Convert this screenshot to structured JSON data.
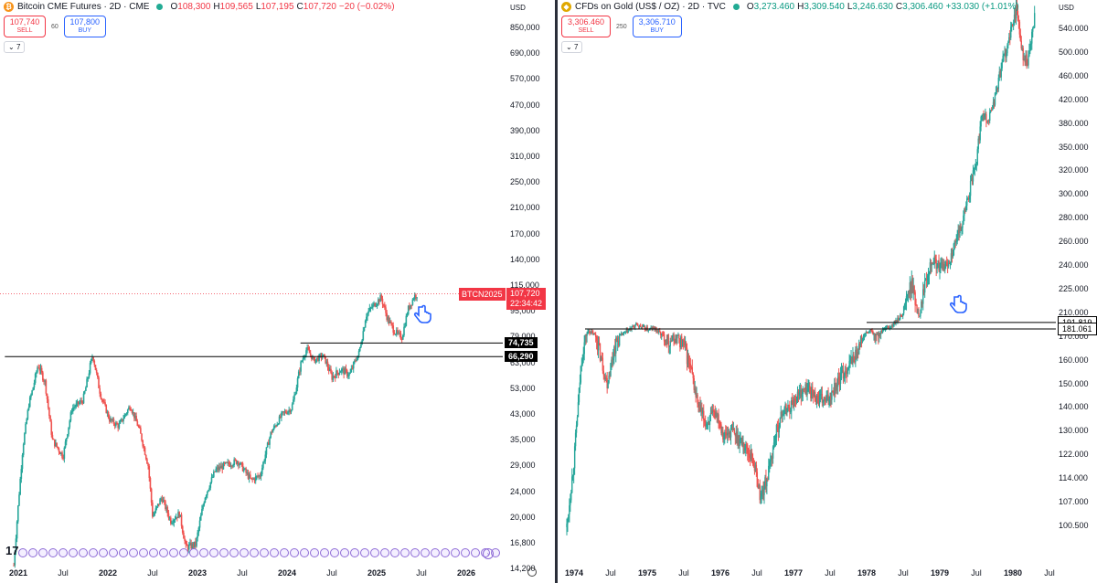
{
  "left": {
    "title": "Bitcoin CME Futures · 2D · CME",
    "ohlc": {
      "o_label": "O",
      "o": "108,300",
      "h_label": "H",
      "h": "109,565",
      "l_label": "L",
      "l": "107,195",
      "c_label": "C",
      "c": "107,720",
      "chg": "−20 (−0.02%)"
    },
    "sell_price": "107,740",
    "sell_label": "SELL",
    "spread": "60",
    "buy_price": "107,800",
    "buy_label": "BUY",
    "collapse_label": "7",
    "currency": "USD",
    "price_labels": [
      {
        "text": "850,000",
        "v": 850000
      },
      {
        "text": "690,000",
        "v": 690000
      },
      {
        "text": "570,000",
        "v": 570000
      },
      {
        "text": "470,000",
        "v": 470000
      },
      {
        "text": "390,000",
        "v": 390000
      },
      {
        "text": "310,000",
        "v": 310000
      },
      {
        "text": "250,000",
        "v": 250000
      },
      {
        "text": "210,000",
        "v": 210000
      },
      {
        "text": "170,000",
        "v": 170000
      },
      {
        "text": "140,000",
        "v": 140000
      },
      {
        "text": "115,000",
        "v": 115000
      },
      {
        "text": "95,000",
        "v": 95000
      },
      {
        "text": "79,000",
        "v": 79000
      },
      {
        "text": "63,000",
        "v": 63000
      },
      {
        "text": "53,000",
        "v": 53000
      },
      {
        "text": "43,000",
        "v": 43000
      },
      {
        "text": "35,000",
        "v": 35000
      },
      {
        "text": "29,000",
        "v": 29000
      },
      {
        "text": "24,000",
        "v": 24000
      },
      {
        "text": "20,000",
        "v": 20000
      },
      {
        "text": "16,800",
        "v": 16800
      },
      {
        "text": "14,200",
        "v": 14200
      }
    ],
    "time_labels": [
      {
        "text": "2021",
        "t": 2021.0,
        "bold": true
      },
      {
        "text": "Jul",
        "t": 2021.5,
        "bold": false
      },
      {
        "text": "2022",
        "t": 2022.0,
        "bold": true
      },
      {
        "text": "Jul",
        "t": 2022.5,
        "bold": false
      },
      {
        "text": "2023",
        "t": 2023.0,
        "bold": true
      },
      {
        "text": "Jul",
        "t": 2023.5,
        "bold": false
      },
      {
        "text": "2024",
        "t": 2024.0,
        "bold": true
      },
      {
        "text": "Jul",
        "t": 2024.5,
        "bold": false
      },
      {
        "text": "2025",
        "t": 2025.0,
        "bold": true
      },
      {
        "text": "Jul",
        "t": 2025.5,
        "bold": false
      },
      {
        "text": "2026",
        "t": 2026.0,
        "bold": true
      }
    ],
    "levels": [
      {
        "text": "74,735",
        "v": 74735,
        "t_from": 2024.15
      },
      {
        "text": "66,290",
        "v": 66290,
        "t_from": 2020.85
      }
    ],
    "current": {
      "symbol": "BTCN2025",
      "price": "107,720",
      "countdown": "22:34:42",
      "v": 107720
    },
    "path": [
      [
        2020.95,
        14500
      ],
      [
        2021.05,
        33000
      ],
      [
        2021.12,
        47000
      ],
      [
        2021.22,
        62000
      ],
      [
        2021.3,
        55000
      ],
      [
        2021.38,
        35000
      ],
      [
        2021.5,
        31000
      ],
      [
        2021.6,
        45000
      ],
      [
        2021.72,
        48000
      ],
      [
        2021.83,
        67000
      ],
      [
        2021.92,
        50000
      ],
      [
        2022.02,
        41000
      ],
      [
        2022.12,
        39000
      ],
      [
        2022.25,
        46000
      ],
      [
        2022.35,
        38000
      ],
      [
        2022.45,
        29000
      ],
      [
        2022.5,
        20000
      ],
      [
        2022.6,
        23000
      ],
      [
        2022.7,
        19500
      ],
      [
        2022.8,
        20500
      ],
      [
        2022.87,
        16300
      ],
      [
        2022.98,
        16600
      ],
      [
        2023.08,
        23000
      ],
      [
        2023.2,
        28000
      ],
      [
        2023.3,
        29000
      ],
      [
        2023.45,
        30000
      ],
      [
        2023.6,
        26000
      ],
      [
        2023.7,
        27000
      ],
      [
        2023.82,
        37000
      ],
      [
        2023.95,
        43000
      ],
      [
        2024.05,
        45000
      ],
      [
        2024.15,
        62000
      ],
      [
        2024.22,
        71000
      ],
      [
        2024.3,
        64000
      ],
      [
        2024.4,
        67000
      ],
      [
        2024.5,
        57000
      ],
      [
        2024.6,
        60000
      ],
      [
        2024.7,
        58000
      ],
      [
        2024.8,
        68000
      ],
      [
        2024.88,
        92000
      ],
      [
        2024.95,
        98000
      ],
      [
        2025.05,
        105000
      ],
      [
        2025.12,
        90000
      ],
      [
        2025.2,
        82000
      ],
      [
        2025.28,
        78000
      ],
      [
        2025.35,
        96000
      ],
      [
        2025.42,
        106000
      ],
      [
        2025.46,
        107720
      ]
    ]
  },
  "right": {
    "title": "CFDs on Gold (US$ / OZ) · 2D · TVC",
    "ohlc": {
      "o_label": "O",
      "o": "3,273.460",
      "h_label": "H",
      "h": "3,309.540",
      "l_label": "L",
      "l": "3,246.630",
      "c_label": "C",
      "c": "3,306.460",
      "chg": "+33.030 (+1.01%)"
    },
    "sell_price": "3,306.460",
    "sell_label": "SELL",
    "spread": "250",
    "buy_price": "3,306.710",
    "buy_label": "BUY",
    "collapse_label": "7",
    "currency": "USD",
    "price_labels": [
      {
        "text": "540.000",
        "v": 540
      },
      {
        "text": "500.000",
        "v": 500
      },
      {
        "text": "460.000",
        "v": 460
      },
      {
        "text": "420.000",
        "v": 420
      },
      {
        "text": "380.000",
        "v": 380
      },
      {
        "text": "350.000",
        "v": 350
      },
      {
        "text": "320.000",
        "v": 320
      },
      {
        "text": "300.000",
        "v": 300
      },
      {
        "text": "280.000",
        "v": 280
      },
      {
        "text": "260.000",
        "v": 260
      },
      {
        "text": "240.000",
        "v": 240
      },
      {
        "text": "225.000",
        "v": 225
      },
      {
        "text": "210.000",
        "v": 210
      },
      {
        "text": "170.000",
        "v": 170
      },
      {
        "text": "160.000",
        "v": 160
      },
      {
        "text": "150.000",
        "v": 150
      },
      {
        "text": "140.000",
        "v": 140
      },
      {
        "text": "130.000",
        "v": 130
      },
      {
        "text": "122.000",
        "v": 122
      },
      {
        "text": "114.000",
        "v": 114
      },
      {
        "text": "107.000",
        "v": 107
      },
      {
        "text": "100.500",
        "v": 100.5
      }
    ],
    "time_labels": [
      {
        "text": "1974",
        "t": 1974.0,
        "bold": true
      },
      {
        "text": "Jul",
        "t": 1974.5,
        "bold": false
      },
      {
        "text": "1975",
        "t": 1975.0,
        "bold": true
      },
      {
        "text": "Jul",
        "t": 1975.5,
        "bold": false
      },
      {
        "text": "1976",
        "t": 1976.0,
        "bold": true
      },
      {
        "text": "Jul",
        "t": 1976.5,
        "bold": false
      },
      {
        "text": "1977",
        "t": 1977.0,
        "bold": true
      },
      {
        "text": "Jul",
        "t": 1977.5,
        "bold": false
      },
      {
        "text": "1978",
        "t": 1978.0,
        "bold": true
      },
      {
        "text": "Jul",
        "t": 1978.5,
        "bold": false
      },
      {
        "text": "1979",
        "t": 1979.0,
        "bold": true
      },
      {
        "text": "Jul",
        "t": 1979.5,
        "bold": false
      },
      {
        "text": "1980",
        "t": 1980.0,
        "bold": true
      },
      {
        "text": "Jul",
        "t": 1980.5,
        "bold": false
      }
    ],
    "levels": [
      {
        "text": "191.819",
        "v": 191.819,
        "t_from": 1978.0
      },
      {
        "text": "181.061",
        "v": 181.061,
        "t_from": 1974.15
      }
    ],
    "path": [
      [
        1973.9,
        100
      ],
      [
        1974.0,
        120
      ],
      [
        1974.1,
        160
      ],
      [
        1974.2,
        178
      ],
      [
        1974.3,
        170
      ],
      [
        1974.45,
        150
      ],
      [
        1974.55,
        165
      ],
      [
        1974.7,
        175
      ],
      [
        1974.85,
        188
      ],
      [
        1975.0,
        180
      ],
      [
        1975.1,
        182
      ],
      [
        1975.2,
        172
      ],
      [
        1975.3,
        168
      ],
      [
        1975.4,
        170
      ],
      [
        1975.5,
        166
      ],
      [
        1975.6,
        155
      ],
      [
        1975.7,
        140
      ],
      [
        1975.8,
        133
      ],
      [
        1975.95,
        138
      ],
      [
        1976.05,
        128
      ],
      [
        1976.15,
        130
      ],
      [
        1976.3,
        126
      ],
      [
        1976.45,
        120
      ],
      [
        1976.55,
        108
      ],
      [
        1976.65,
        115
      ],
      [
        1976.75,
        128
      ],
      [
        1976.85,
        138
      ],
      [
        1976.95,
        140
      ],
      [
        1977.05,
        145
      ],
      [
        1977.2,
        148
      ],
      [
        1977.3,
        144
      ],
      [
        1977.45,
        142
      ],
      [
        1977.55,
        148
      ],
      [
        1977.7,
        155
      ],
      [
        1977.85,
        162
      ],
      [
        1977.95,
        170
      ],
      [
        1978.05,
        178
      ],
      [
        1978.12,
        170
      ],
      [
        1978.25,
        180
      ],
      [
        1978.35,
        186
      ],
      [
        1978.45,
        200
      ],
      [
        1978.55,
        220
      ],
      [
        1978.62,
        228
      ],
      [
        1978.72,
        205
      ],
      [
        1978.8,
        232
      ],
      [
        1978.9,
        245
      ],
      [
        1979.0,
        238
      ],
      [
        1979.1,
        240
      ],
      [
        1979.2,
        255
      ],
      [
        1979.3,
        275
      ],
      [
        1979.4,
        300
      ],
      [
        1979.5,
        330
      ],
      [
        1979.58,
        400
      ],
      [
        1979.66,
        385
      ],
      [
        1979.75,
        420
      ],
      [
        1979.85,
        480
      ],
      [
        1979.95,
        520
      ],
      [
        1980.05,
        580
      ],
      [
        1980.12,
        500
      ],
      [
        1980.2,
        480
      ],
      [
        1980.3,
        560
      ]
    ]
  }
}
